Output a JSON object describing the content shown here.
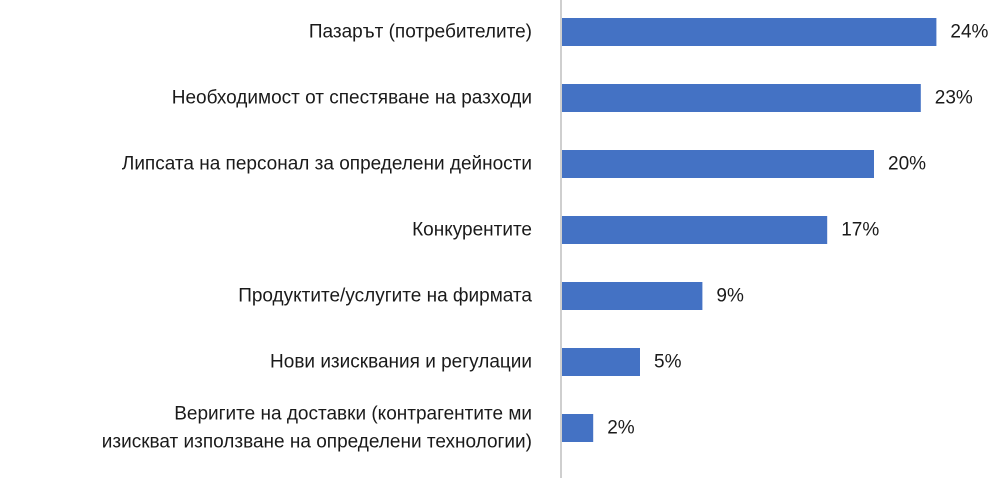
{
  "chart_data": {
    "type": "bar",
    "orientation": "horizontal",
    "categories": [
      [
        "Пазарът (потребителите)"
      ],
      [
        "Необходимост от спестяване на разходи"
      ],
      [
        "Липсата на персонал за определени дейности"
      ],
      [
        "Конкурентите"
      ],
      [
        "Продуктите/услугите на фирмата"
      ],
      [
        "Нови изисквания и регулации"
      ],
      [
        "Веригите на доставки (контрагентите ми",
        "изискват използване на определени технологии)"
      ]
    ],
    "values": [
      24,
      23,
      20,
      17,
      9,
      5,
      2
    ],
    "value_labels": [
      "24%",
      "23%",
      "20%",
      "17%",
      "9%",
      "5%",
      "2%"
    ],
    "value_unit": "%",
    "xlim": [
      0,
      25
    ],
    "grid": false,
    "legend": "none",
    "colors": {
      "bar": "#4472C4",
      "axis": "#bfbfbf",
      "text": "#1a1a1a"
    }
  }
}
